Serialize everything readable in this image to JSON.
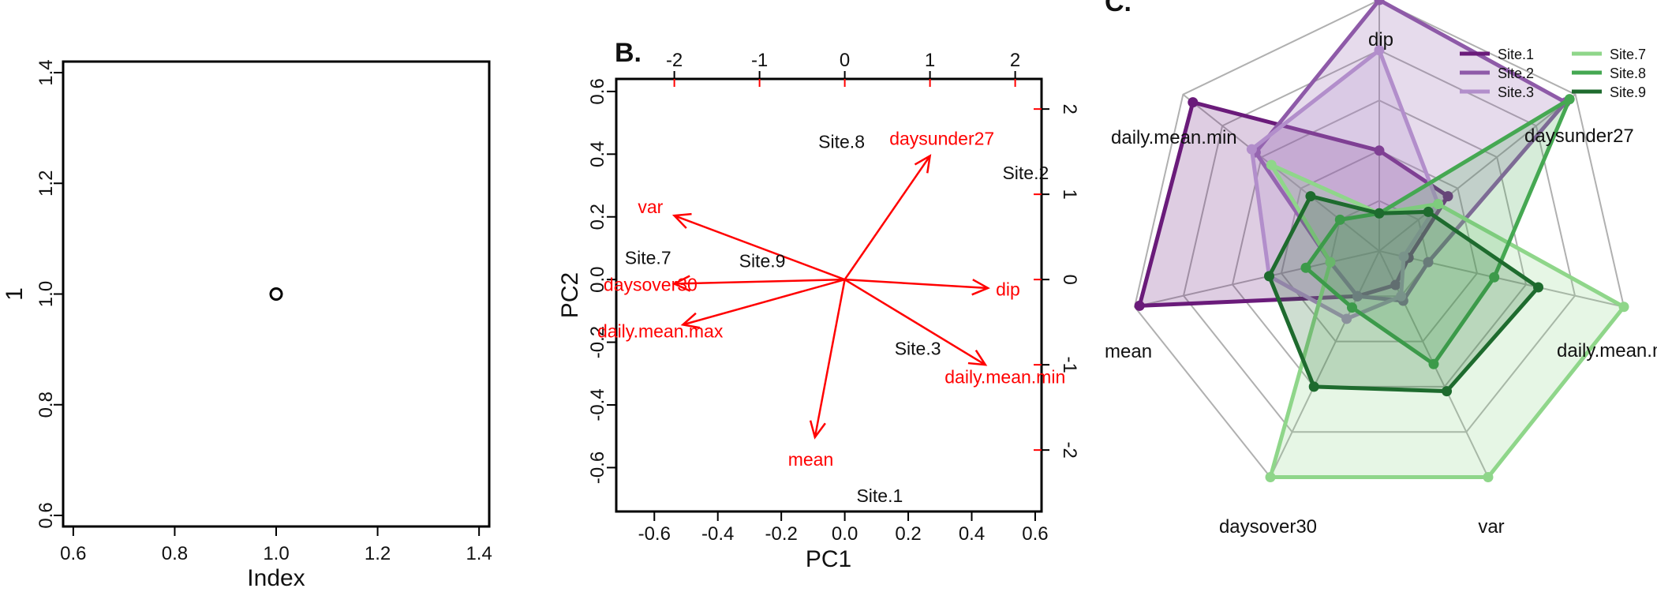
{
  "chart_data": [
    {
      "type": "scatter",
      "panel_label": "",
      "xlabel": "Index",
      "ylabel": "1",
      "xlim": [
        0.58,
        1.42
      ],
      "ylim": [
        0.58,
        1.42
      ],
      "x_ticks": [
        "0.6",
        "0.8",
        "1.0",
        "1.2",
        "1.4"
      ],
      "y_ticks": [
        "0.6",
        "0.8",
        "1.0",
        "1.2",
        "1.4"
      ],
      "points": [
        {
          "x": 1.0,
          "y": 1.0
        }
      ]
    },
    {
      "type": "scatter",
      "subtype": "biplot",
      "panel_label": "B.",
      "xlabel": "PC1",
      "ylabel": "PC2",
      "xlim": [
        -0.72,
        0.62
      ],
      "ylim": [
        -0.74,
        0.64
      ],
      "x_ticks": [
        "-0.6",
        "-0.4",
        "-0.2",
        "0.0",
        "0.2",
        "0.4",
        "0.6"
      ],
      "y_ticks": [
        "-0.6",
        "-0.4",
        "-0.2",
        "0.0",
        "0.2",
        "0.4",
        "0.6"
      ],
      "top_ticks": [
        "-2",
        "-1",
        "0",
        "1",
        "2"
      ],
      "right_ticks": [
        "-2",
        "-1",
        "0",
        "1",
        "2"
      ],
      "sites": [
        {
          "name": "Site.8",
          "x": -0.01,
          "y": 0.44
        },
        {
          "name": "Site.2",
          "x": 0.57,
          "y": 0.34
        },
        {
          "name": "Site.7",
          "x": -0.62,
          "y": 0.07
        },
        {
          "name": "Site.9",
          "x": -0.26,
          "y": 0.06
        },
        {
          "name": "Site.3",
          "x": 0.23,
          "y": -0.22
        },
        {
          "name": "Site.1",
          "x": 0.11,
          "y": -0.69
        }
      ],
      "loadings": [
        {
          "name": "daysunder27",
          "x": 1.0,
          "y": 1.45
        },
        {
          "name": "var",
          "x": -2.0,
          "y": 0.75
        },
        {
          "name": "daysover30",
          "x": -2.0,
          "y": -0.05
        },
        {
          "name": "daily.mean.max",
          "x": -1.9,
          "y": -0.53
        },
        {
          "name": "dip",
          "x": 1.68,
          "y": -0.1
        },
        {
          "name": "daily.mean.min",
          "x": 1.65,
          "y": -1.0
        },
        {
          "name": "mean",
          "x": -0.35,
          "y": -1.85
        }
      ],
      "colors": {
        "sites": "#111111",
        "loadings": "#ff0000"
      }
    },
    {
      "type": "radar",
      "panel_label": "C.",
      "axes": [
        "dip",
        "daysunder27",
        "daily.mean.max",
        "var",
        "daysover30",
        "mean",
        "daily.mean.min"
      ],
      "levels": 5,
      "series": [
        {
          "name": "Site.1",
          "color": "#6a1b7a",
          "values": [
            0.4,
            0.35,
            0.12,
            0.15,
            0.2,
            0.98,
            0.95
          ]
        },
        {
          "name": "Site.2",
          "color": "#8e5aa8",
          "values": [
            1.0,
            0.95,
            0.2,
            0.22,
            0.2,
            0.2,
            0.63
          ]
        },
        {
          "name": "Site.3",
          "color": "#b28ecb",
          "values": [
            0.8,
            0.3,
            0.1,
            0.2,
            0.3,
            0.45,
            0.65
          ]
        },
        {
          "name": "Site.7",
          "color": "#8fd68a",
          "values": [
            0.15,
            0.3,
            1.0,
            1.0,
            1.0,
            0.2,
            0.55
          ]
        },
        {
          "name": "Site.8",
          "color": "#45a852",
          "values": [
            0.15,
            0.97,
            0.47,
            0.5,
            0.25,
            0.3,
            0.2
          ]
        },
        {
          "name": "Site.9",
          "color": "#1e6b2e",
          "values": [
            0.15,
            0.25,
            0.65,
            0.62,
            0.6,
            0.45,
            0.35
          ]
        }
      ]
    }
  ]
}
